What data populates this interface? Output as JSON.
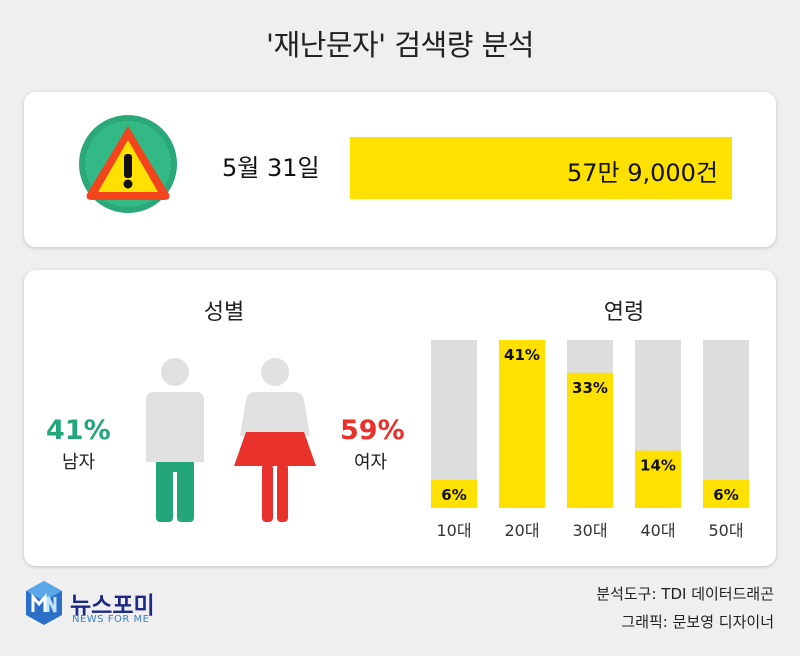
{
  "title": "'재난문자' 검색량 분석",
  "summary": {
    "date": "5월 31일",
    "total": "57만 9,000건",
    "icon": "warning-icon",
    "colors": {
      "bar": "#ffe100",
      "warning_triangle": "#f2441d",
      "warning_circle": "#2aa877"
    }
  },
  "gender": {
    "title": "성별",
    "male": {
      "percent": "41%",
      "label": "남자",
      "color": "#23a77a"
    },
    "female": {
      "percent": "59%",
      "label": "여자",
      "color": "#e8322b"
    }
  },
  "chart_data": {
    "type": "bar",
    "title": "연령",
    "categories": [
      "10대",
      "20대",
      "30대",
      "40대",
      "50대"
    ],
    "values": [
      6,
      41,
      33,
      14,
      6
    ],
    "value_labels": [
      "6%",
      "41%",
      "33%",
      "14%",
      "6%"
    ],
    "ylim": [
      0,
      41
    ],
    "grid": false,
    "colors": {
      "fill": "#ffe100",
      "track": "#dddddd"
    }
  },
  "footer": {
    "logo_name": "뉴스포미",
    "logo_sub": "NEWS FOR ME",
    "credit_tool": "분석도구: TDI 데이터드래곤",
    "credit_graphic": "그래픽: 문보영 디자이너"
  }
}
